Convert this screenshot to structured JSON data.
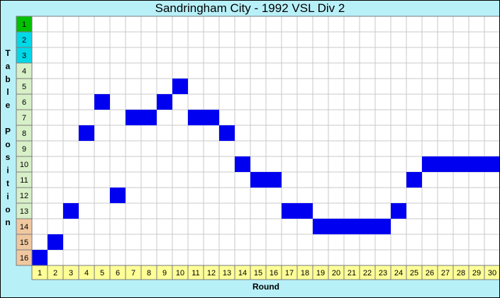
{
  "chart_data": {
    "type": "table",
    "title": "Sandringham City - 1992 VSL Div 2",
    "xlabel": "Round",
    "ylabel": "Table Position",
    "x": [
      1,
      2,
      3,
      4,
      5,
      6,
      7,
      8,
      9,
      10,
      11,
      12,
      13,
      14,
      15,
      16,
      17,
      18,
      19,
      20,
      21,
      22,
      23,
      24,
      25,
      26,
      27,
      28,
      29,
      30
    ],
    "y": [
      16,
      15,
      13,
      8,
      6,
      12,
      7,
      7,
      6,
      5,
      7,
      7,
      8,
      10,
      11,
      11,
      13,
      13,
      14,
      14,
      14,
      14,
      14,
      13,
      11,
      10,
      10,
      10,
      10,
      10
    ],
    "xlim": [
      1,
      30
    ],
    "ylim": [
      1,
      16
    ],
    "y_axis_inverted": true,
    "grid": true,
    "position_zones": [
      {
        "rows": [
          1
        ],
        "color": "#00c000"
      },
      {
        "rows": [
          2,
          3
        ],
        "color": "#00d8e8"
      },
      {
        "rows": [
          4,
          5,
          6,
          7,
          8,
          9,
          10,
          11,
          12,
          13
        ],
        "color": "#d8f0c8"
      },
      {
        "rows": [
          14,
          15,
          16
        ],
        "color": "#f0c8a0"
      }
    ],
    "colors": {
      "background": "#b8f0f8",
      "marker": "#0000f0",
      "round_labels": "#ffff98",
      "plot": "#ffffff",
      "grid": "#c8c8c8"
    }
  }
}
